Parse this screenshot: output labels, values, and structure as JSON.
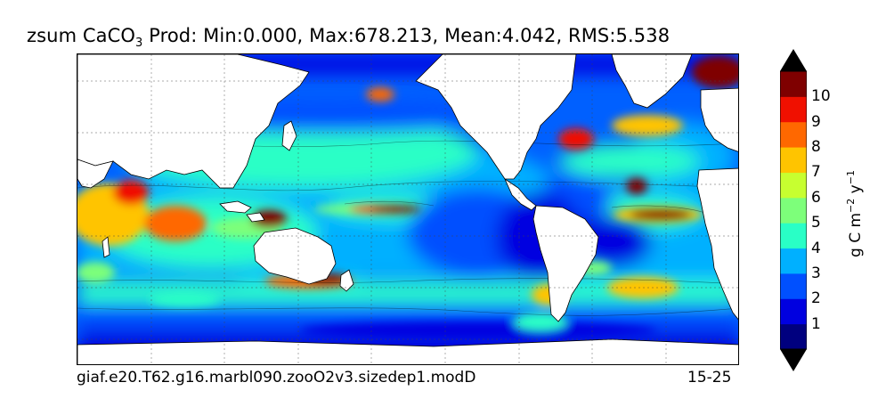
{
  "title": {
    "prefix": "zsum CaCO",
    "subscript": "3",
    "stats": " Prod: Min:0.000, Max:678.213, Mean:4.042, RMS:5.538"
  },
  "footer": {
    "case_name": "giaf.e20.T62.g16.marbl090.zooO2v3.sizedep1.modD",
    "years": "15-25"
  },
  "colorbar": {
    "units_base": "g C m",
    "units_exp1": "−2",
    "units_mid": " y",
    "units_exp2": "−1",
    "ticks": [
      "1",
      "2",
      "3",
      "4",
      "5",
      "6",
      "7",
      "8",
      "9",
      "10"
    ],
    "colors": [
      "#00007f",
      "#0000e0",
      "#0050ff",
      "#00b0ff",
      "#29ffc6",
      "#7dff7a",
      "#c7ff30",
      "#ffc400",
      "#ff6800",
      "#f01000",
      "#7f0000"
    ]
  },
  "chart_data": {
    "type": "heatmap",
    "title": "zsum CaCO3 Prod: Min:0.000, Max:678.213, Mean:4.042, RMS:5.538",
    "colorbar_label": "g C m^-2 y^-1",
    "colorbar_levels": [
      0,
      1,
      2,
      3,
      4,
      5,
      6,
      7,
      8,
      9,
      10
    ],
    "colorbar_extend": "both",
    "statistics": {
      "min": 0.0,
      "max": 678.213,
      "mean": 4.042,
      "rms": 5.538
    },
    "grid": true,
    "land_color": "#ffffff"
  }
}
